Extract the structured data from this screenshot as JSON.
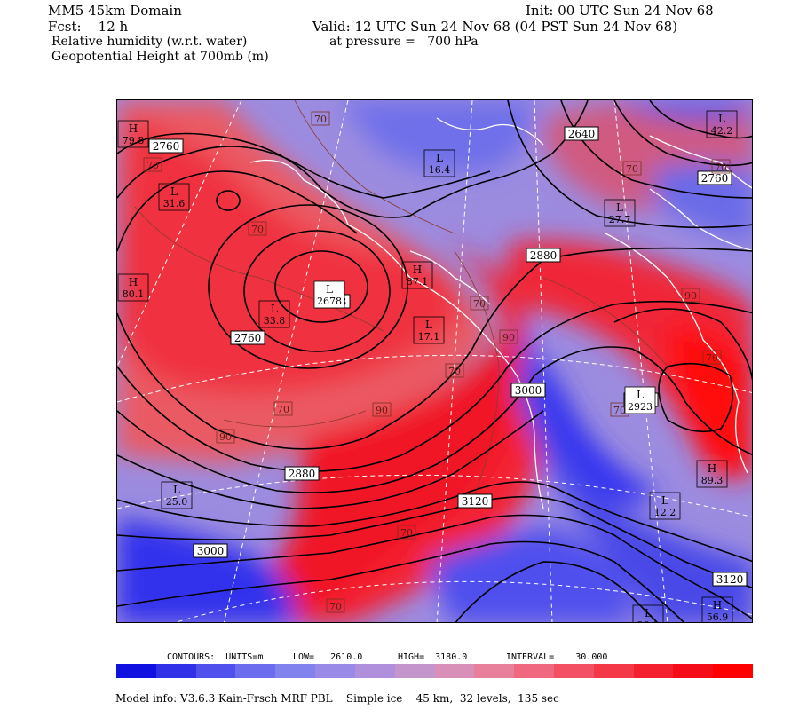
{
  "header": {
    "domain": "MM5 45km Domain",
    "forecast": "Fcst:    12 h",
    "init": "Init: 00 UTC Sun 24 Nov 68",
    "valid": "Valid: 12 UTC Sun 24 Nov 68 (04 PST Sun 24 Nov 68)",
    "field1": "Relative humidity (w.r.t. water)",
    "field1_level": "at pressure =   700 hPa",
    "field2": "Geopotential Height at 700mb (m)"
  },
  "height_labels": [
    "2760",
    "2640",
    "2760",
    "2880",
    "2678",
    "2760",
    "3000",
    "2923",
    "2880",
    "3120",
    "3000",
    "3120"
  ],
  "rh_labels": [
    "70",
    "70",
    "70",
    "70",
    "70",
    "70",
    "90",
    "90",
    "70",
    "70",
    "70",
    "90",
    "90",
    "70",
    "70",
    "70"
  ],
  "extrema": [
    {
      "type": "H",
      "value": "79.8"
    },
    {
      "type": "L",
      "value": "31.6"
    },
    {
      "type": "H",
      "value": "80.1"
    },
    {
      "type": "L",
      "value": "33.8"
    },
    {
      "type": "L",
      "value": "2678"
    },
    {
      "type": "L",
      "value": "16.4"
    },
    {
      "type": "L",
      "value": "42.2"
    },
    {
      "type": "L",
      "value": "27.7"
    },
    {
      "type": "H",
      "value": "87.1"
    },
    {
      "type": "L",
      "value": "17.1"
    },
    {
      "type": "L",
      "value": "2923"
    },
    {
      "type": "H",
      "value": "89.3"
    },
    {
      "type": "L",
      "value": "25.0"
    },
    {
      "type": "H",
      "value": "56.9"
    },
    {
      "type": "L",
      "value": "28.0"
    },
    {
      "type": "L",
      "value": "12.2"
    }
  ],
  "colorbar": {
    "colors": [
      "#1010e0",
      "#3030e8",
      "#5050ec",
      "#6c6cee",
      "#8282ee",
      "#9a8ae8",
      "#b090dc",
      "#c494cc",
      "#d890b8",
      "#e8809c",
      "#f06880",
      "#f45064",
      "#f43848",
      "#f42030",
      "#f40c18",
      "#ff0000"
    ]
  },
  "contours_info": {
    "units_label": "CONTOURS:  UNITS=m",
    "low": "LOW=   2610.0",
    "high": "HIGH=  3180.0",
    "interval": "INTERVAL=    30.000"
  },
  "model_info": "Model info: V3.6.3 Kain-Frsch MRF PBL    Simple ice    45 km,  32 levels,  135 sec"
}
